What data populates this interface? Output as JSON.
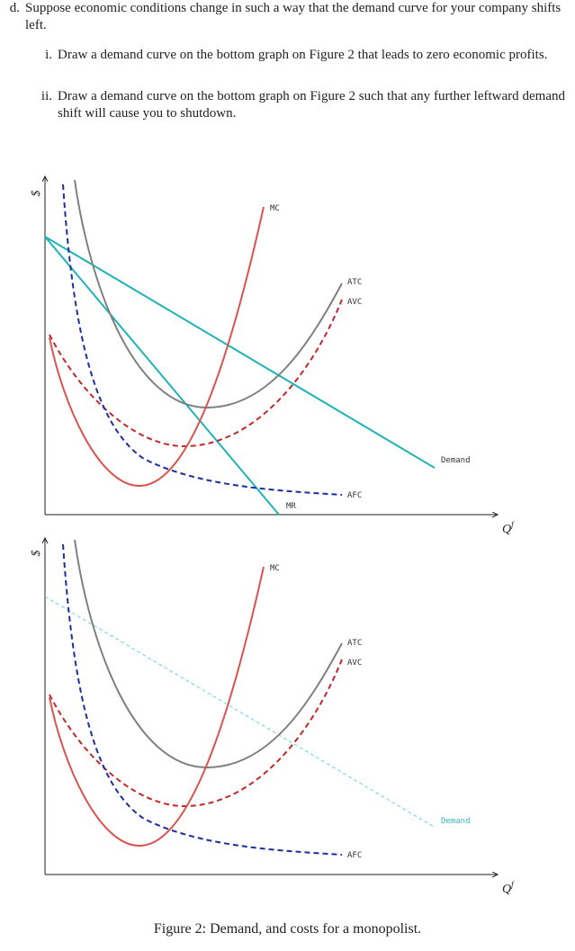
{
  "question": {
    "label": "d.",
    "text": "Suppose economic conditions change in such a way that the demand curve for your company shifts left.",
    "items": [
      {
        "label": "i.",
        "text": "Draw a demand curve on the bottom graph on Figure 2 that leads to zero economic profits."
      },
      {
        "label": "ii.",
        "text": "Draw a demand curve on the bottom graph on Figure 2 such that any further leftward demand shift will cause you to shutdown."
      }
    ]
  },
  "figure": {
    "graphs": [
      {
        "y_label": "$",
        "x_label": "Q",
        "x_label_sup": "f",
        "curve_labels": {
          "mc": "MC",
          "atc": "ATC",
          "avc": "AVC",
          "afc": "AFC",
          "demand": "Demand",
          "mr": "MR"
        }
      },
      {
        "y_label": "$",
        "x_label": "Q",
        "x_label_sup": "f",
        "curve_labels": {
          "mc": "MC",
          "atc": "ATC",
          "avc": "AVC",
          "afc": "AFC",
          "demand": "Demand"
        }
      }
    ],
    "caption": "Figure 2: Demand, and costs for a monopolist."
  }
}
